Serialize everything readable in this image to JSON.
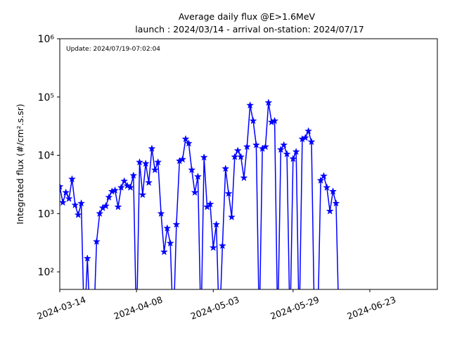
{
  "chart_data": {
    "type": "line",
    "title": "Average daily flux @E>1.6MeV",
    "subtitle": "launch : 2024/03/14 - arrival on-station: 2024/07/17",
    "annotation": "Update: 2024/07/19-07:02:04",
    "y_label": "Integrated flux (#/cm².s.sr)",
    "x": [
      "2024-03-14",
      "2024-03-15",
      "2024-03-16",
      "2024-03-17",
      "2024-03-18",
      "2024-03-19",
      "2024-03-20",
      "2024-03-21",
      "2024-03-22",
      "2024-03-23",
      "2024-03-24",
      "2024-03-25",
      "2024-03-26",
      "2024-03-27",
      "2024-03-28",
      "2024-03-29",
      "2024-03-30",
      "2024-03-31",
      "2024-04-01",
      "2024-04-02",
      "2024-04-03",
      "2024-04-04",
      "2024-04-05",
      "2024-04-06",
      "2024-04-07",
      "2024-04-08",
      "2024-04-09",
      "2024-04-10",
      "2024-04-11",
      "2024-04-12",
      "2024-04-13",
      "2024-04-14",
      "2024-04-15",
      "2024-04-16",
      "2024-04-17",
      "2024-04-18",
      "2024-04-19",
      "2024-04-20",
      "2024-04-21",
      "2024-04-22",
      "2024-04-23",
      "2024-04-24",
      "2024-04-25",
      "2024-04-26",
      "2024-04-27",
      "2024-04-28",
      "2024-04-29",
      "2024-04-30",
      "2024-05-01",
      "2024-05-02",
      "2024-05-03",
      "2024-05-04",
      "2024-05-05",
      "2024-05-06",
      "2024-05-07",
      "2024-05-08",
      "2024-05-09",
      "2024-05-10",
      "2024-05-11",
      "2024-05-12",
      "2024-05-13",
      "2024-05-14",
      "2024-05-15",
      "2024-05-16",
      "2024-05-17",
      "2024-05-18",
      "2024-05-19",
      "2024-05-20",
      "2024-05-21",
      "2024-05-22",
      "2024-05-23",
      "2024-05-24",
      "2024-05-25",
      "2024-05-26",
      "2024-05-27",
      "2024-05-28",
      "2024-05-29",
      "2024-05-30",
      "2024-05-31",
      "2024-06-01",
      "2024-06-02",
      "2024-06-03",
      "2024-06-04",
      "2024-06-05",
      "2024-06-06",
      "2024-06-07",
      "2024-06-08",
      "2024-06-09",
      "2024-06-10",
      "2024-06-11",
      "2024-06-12",
      "2024-06-13"
    ],
    "values": [
      2900,
      1550,
      2300,
      1800,
      3900,
      1400,
      950,
      1500,
      10,
      170,
      10,
      10,
      330,
      1000,
      1250,
      1350,
      1900,
      2400,
      2500,
      1300,
      2800,
      3600,
      3000,
      2800,
      4500,
      10,
      7600,
      2100,
      7200,
      3400,
      13000,
      5600,
      7600,
      1000,
      220,
      560,
      310,
      10,
      650,
      8000,
      8500,
      19000,
      16000,
      5600,
      2300,
      4300,
      10,
      9200,
      1300,
      1450,
      260,
      650,
      10,
      280,
      5900,
      2200,
      870,
      9400,
      12000,
      9400,
      4100,
      14000,
      72000,
      39000,
      15000,
      10,
      13000,
      14000,
      80000,
      37000,
      39000,
      10,
      12500,
      15000,
      10500,
      10,
      8700,
      11500,
      10,
      19000,
      20000,
      26000,
      17000,
      10,
      10,
      3700,
      4400,
      2800,
      1100,
      2400,
      1500,
      10
    ],
    "color": "#0000ff",
    "log_y": true,
    "xlim": [
      "2024-03-14",
      "2024-07-15"
    ],
    "xticks": [
      "2024-03-14",
      "2024-04-08",
      "2024-05-03",
      "2024-05-29",
      "2024-06-23"
    ],
    "ylim": [
      50,
      1000000
    ],
    "yticks": [
      {
        "value": 100,
        "label": "10²"
      },
      {
        "value": 1000,
        "label": "10³"
      },
      {
        "value": 10000,
        "label": "10⁴"
      },
      {
        "value": 100000,
        "label": "10⁵"
      },
      {
        "value": 1000000,
        "label": "10⁶"
      }
    ]
  }
}
